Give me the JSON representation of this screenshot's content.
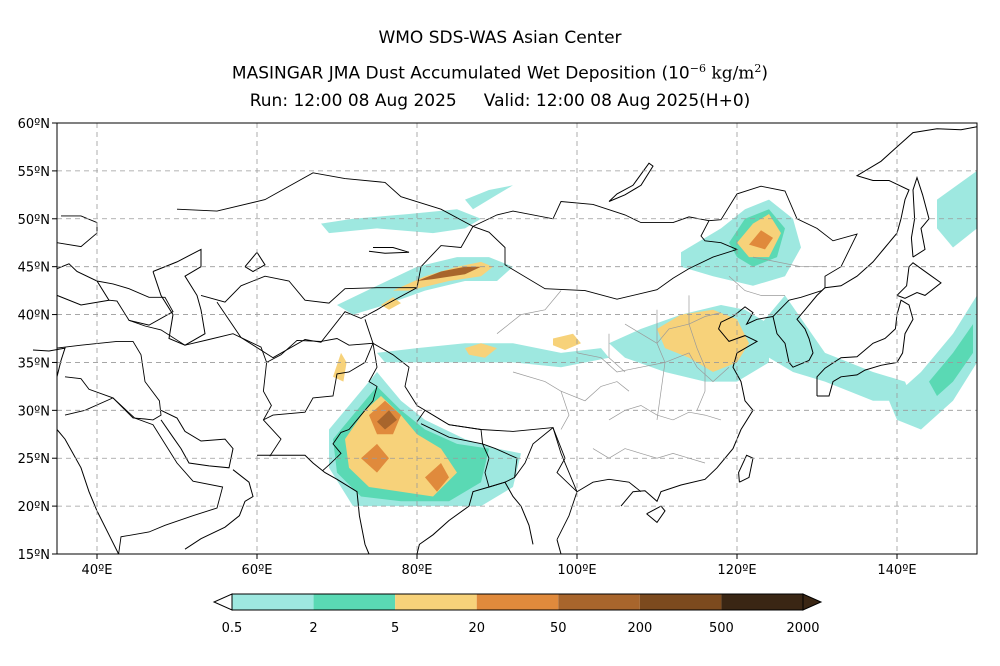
{
  "header": {
    "line1": "WMO SDS-WAS Asian Center",
    "line2_prefix": "MASINGAR JMA Dust Accumulated Wet Deposition (10",
    "line2_exp": "−6",
    "line2_unit": " kg/m",
    "line2_unit_exp": "2",
    "line2_close": ")",
    "run": "Run: 12:00 08 Aug 2025",
    "valid": "Valid: 12:00 08 Aug 2025(H+0)"
  },
  "map": {
    "lon_range": [
      35,
      150
    ],
    "lat_range": [
      15,
      60
    ],
    "lon_ticks": [
      {
        "value": 40,
        "label": "40ºE"
      },
      {
        "value": 60,
        "label": "60ºE"
      },
      {
        "value": 80,
        "label": "80ºE"
      },
      {
        "value": 100,
        "label": "100ºE"
      },
      {
        "value": 120,
        "label": "120ºE"
      },
      {
        "value": 140,
        "label": "140ºE"
      }
    ],
    "lat_ticks": [
      {
        "value": 60,
        "label": "60ºN"
      },
      {
        "value": 55,
        "label": "55ºN"
      },
      {
        "value": 50,
        "label": "50ºN"
      },
      {
        "value": 45,
        "label": "45ºN"
      },
      {
        "value": 40,
        "label": "40ºN"
      },
      {
        "value": 35,
        "label": "35ºN"
      },
      {
        "value": 30,
        "label": "30ºN"
      },
      {
        "value": 25,
        "label": "25ºN"
      },
      {
        "value": 20,
        "label": "20ºN"
      },
      {
        "value": 15,
        "label": "15ºN"
      }
    ],
    "grid": true
  },
  "colorbar": {
    "colors": [
      "#9ee8e0",
      "#5ad9b4",
      "#f7d27a",
      "#e08a3c",
      "#a8652c",
      "#7c4a1e",
      "#3a2614"
    ],
    "under_color": "#ffffff",
    "over_color": "#3a2614",
    "labels": [
      "0.5",
      "2",
      "5",
      "20",
      "50",
      "200",
      "500",
      "2000"
    ]
  },
  "deposition_regions": [
    {
      "name": "central-asia-band",
      "level": 0,
      "lonlat": [
        [
          69,
          48.5
        ],
        [
          75,
          49
        ],
        [
          82,
          48.5
        ],
        [
          86,
          49
        ],
        [
          88,
          50
        ],
        [
          85,
          51
        ],
        [
          79,
          50.5
        ],
        [
          72,
          50
        ],
        [
          68,
          49.5
        ]
      ]
    },
    {
      "name": "altai",
      "level": 0,
      "lonlat": [
        [
          87,
          51
        ],
        [
          90,
          52.5
        ],
        [
          92,
          53.5
        ],
        [
          89,
          53
        ],
        [
          86,
          52
        ]
      ]
    },
    {
      "name": "tianshan-outer",
      "level": 0,
      "lonlat": [
        [
          70,
          41
        ],
        [
          75,
          43
        ],
        [
          80,
          45
        ],
        [
          85,
          46
        ],
        [
          89,
          46
        ],
        [
          92,
          45
        ],
        [
          90,
          43.5
        ],
        [
          86,
          43.5
        ],
        [
          81,
          42.5
        ],
        [
          76,
          41
        ],
        [
          72,
          40
        ]
      ]
    },
    {
      "name": "tianshan-mid",
      "level": 2,
      "lonlat": [
        [
          77,
          42.5
        ],
        [
          81,
          44
        ],
        [
          85,
          45
        ],
        [
          88,
          45.5
        ],
        [
          89.5,
          45
        ],
        [
          88,
          44
        ],
        [
          84,
          43.5
        ],
        [
          79,
          42.5
        ]
      ]
    },
    {
      "name": "tianshan-core",
      "level": 4,
      "lonlat": [
        [
          80,
          43.5
        ],
        [
          83,
          44.5
        ],
        [
          86,
          45
        ],
        [
          88,
          45
        ],
        [
          86,
          44.2
        ],
        [
          82,
          43.7
        ]
      ]
    },
    {
      "name": "kyrgyz-spot",
      "level": 2,
      "lonlat": [
        [
          75.5,
          41
        ],
        [
          77,
          41.8
        ],
        [
          78,
          41.2
        ],
        [
          76.5,
          40.5
        ]
      ]
    },
    {
      "name": "kunlun-band",
      "level": 0,
      "lonlat": [
        [
          75,
          36
        ],
        [
          80,
          36.5
        ],
        [
          86,
          37
        ],
        [
          92,
          37
        ],
        [
          98,
          36
        ],
        [
          103,
          36.5
        ],
        [
          104,
          35.5
        ],
        [
          98,
          34.5
        ],
        [
          92,
          35
        ],
        [
          86,
          35
        ],
        [
          80,
          35
        ],
        [
          76,
          35
        ]
      ]
    },
    {
      "name": "kunlun-yellow",
      "level": 2,
      "lonlat": [
        [
          86,
          36.5
        ],
        [
          88,
          37
        ],
        [
          90,
          36.5
        ],
        [
          88.5,
          35.5
        ],
        [
          86.5,
          35.8
        ]
      ]
    },
    {
      "name": "qinghai",
      "level": 2,
      "lonlat": [
        [
          97,
          37.5
        ],
        [
          99.5,
          38
        ],
        [
          100.5,
          37
        ],
        [
          98.5,
          36.3
        ],
        [
          97,
          36.8
        ]
      ]
    },
    {
      "name": "north-china-outer",
      "level": 0,
      "lonlat": [
        [
          104,
          37
        ],
        [
          108,
          38.5
        ],
        [
          113,
          40
        ],
        [
          118,
          41
        ],
        [
          121,
          40.5
        ],
        [
          124,
          39
        ],
        [
          124,
          35
        ],
        [
          120,
          33
        ],
        [
          116,
          33
        ],
        [
          111,
          34
        ],
        [
          106,
          35.5
        ]
      ]
    },
    {
      "name": "north-china-yellow",
      "level": 2,
      "lonlat": [
        [
          110,
          38.5
        ],
        [
          113,
          40
        ],
        [
          117,
          40.5
        ],
        [
          120,
          39.5
        ],
        [
          121.5,
          37
        ],
        [
          120,
          35
        ],
        [
          117,
          34
        ],
        [
          114,
          35.5
        ],
        [
          111,
          36.5
        ]
      ]
    },
    {
      "name": "northeast-outer",
      "level": 0,
      "lonlat": [
        [
          113,
          46.5
        ],
        [
          118,
          49
        ],
        [
          121,
          51
        ],
        [
          124,
          52
        ],
        [
          127,
          50
        ],
        [
          128,
          47
        ],
        [
          126,
          44
        ],
        [
          122,
          43
        ],
        [
          117,
          44
        ],
        [
          113,
          45
        ]
      ]
    },
    {
      "name": "northeast-green",
      "level": 1,
      "lonlat": [
        [
          119,
          47.5
        ],
        [
          121,
          50
        ],
        [
          124,
          51
        ],
        [
          126,
          49
        ],
        [
          125,
          46
        ],
        [
          122,
          45
        ],
        [
          120,
          46
        ]
      ]
    },
    {
      "name": "northeast-yellow",
      "level": 2,
      "lonlat": [
        [
          120,
          47.5
        ],
        [
          122,
          49.5
        ],
        [
          124,
          50.5
        ],
        [
          125.5,
          48.5
        ],
        [
          124,
          46
        ],
        [
          121.5,
          46
        ]
      ]
    },
    {
      "name": "northeast-brown",
      "level": 3,
      "lonlat": [
        [
          121.5,
          47.3
        ],
        [
          123,
          48.8
        ],
        [
          124.5,
          48
        ],
        [
          123.5,
          46.8
        ]
      ]
    },
    {
      "name": "korea-japan-band",
      "level": 0,
      "lonlat": [
        [
          122,
          38
        ],
        [
          126,
          42
        ],
        [
          131,
          36
        ],
        [
          137,
          34
        ],
        [
          141,
          33
        ],
        [
          142,
          31
        ],
        [
          137,
          31
        ],
        [
          131,
          33
        ],
        [
          127,
          34
        ],
        [
          123,
          36
        ]
      ]
    },
    {
      "name": "pacific-band",
      "level": 0,
      "lonlat": [
        [
          139,
          31
        ],
        [
          143,
          34
        ],
        [
          147,
          38
        ],
        [
          150,
          42
        ],
        [
          150,
          35
        ],
        [
          147,
          31
        ],
        [
          143,
          28
        ],
        [
          140,
          29
        ]
      ]
    },
    {
      "name": "pacific-green",
      "level": 1,
      "lonlat": [
        [
          144,
          33
        ],
        [
          147,
          36
        ],
        [
          149.5,
          39
        ],
        [
          149.5,
          36
        ],
        [
          147,
          33
        ],
        [
          145,
          31.5
        ]
      ]
    },
    {
      "name": "east-asia-north",
      "level": 0,
      "lonlat": [
        [
          145,
          52
        ],
        [
          150,
          55
        ],
        [
          150,
          49
        ],
        [
          147,
          47
        ],
        [
          145,
          49
        ]
      ]
    },
    {
      "name": "pakistan-spot",
      "level": 2,
      "lonlat": [
        [
          69.5,
          33.5
        ],
        [
          70.5,
          36
        ],
        [
          71.2,
          35
        ],
        [
          70.8,
          33
        ]
      ]
    },
    {
      "name": "india-outer",
      "level": 0,
      "lonlat": [
        [
          69,
          28
        ],
        [
          72,
          31
        ],
        [
          75,
          34
        ],
        [
          78,
          31
        ],
        [
          81,
          29
        ],
        [
          86,
          27
        ],
        [
          90,
          26
        ],
        [
          93,
          25.5
        ],
        [
          92,
          22
        ],
        [
          88,
          20
        ],
        [
          80,
          20
        ],
        [
          72,
          20
        ],
        [
          69,
          24
        ]
      ]
    },
    {
      "name": "india-green",
      "level": 1,
      "lonlat": [
        [
          69.5,
          27
        ],
        [
          72.5,
          30
        ],
        [
          75,
          32.5
        ],
        [
          78,
          30
        ],
        [
          81,
          28
        ],
        [
          85,
          26.5
        ],
        [
          89,
          26
        ],
        [
          88,
          22.5
        ],
        [
          84,
          20.5
        ],
        [
          78,
          20.5
        ],
        [
          73,
          21
        ],
        [
          70,
          23.5
        ]
      ]
    },
    {
      "name": "india-yellow",
      "level": 2,
      "lonlat": [
        [
          71,
          27
        ],
        [
          73.5,
          30
        ],
        [
          75.5,
          31.5
        ],
        [
          78,
          29.5
        ],
        [
          80,
          27.5
        ],
        [
          83,
          26
        ],
        [
          85,
          23.5
        ],
        [
          82,
          21
        ],
        [
          78,
          21.5
        ],
        [
          74,
          22
        ],
        [
          71.5,
          24
        ]
      ]
    },
    {
      "name": "india-brown-north",
      "level": 3,
      "lonlat": [
        [
          74,
          29.5
        ],
        [
          76,
          31
        ],
        [
          78,
          29.5
        ],
        [
          77,
          27.5
        ],
        [
          75,
          27.5
        ]
      ]
    },
    {
      "name": "india-brown-mid",
      "level": 3,
      "lonlat": [
        [
          73,
          25
        ],
        [
          75,
          26.5
        ],
        [
          76.5,
          25
        ],
        [
          75,
          23.5
        ]
      ]
    },
    {
      "name": "india-brown-east",
      "level": 3,
      "lonlat": [
        [
          81,
          23
        ],
        [
          83,
          24.5
        ],
        [
          84,
          23
        ],
        [
          82.5,
          21.5
        ]
      ]
    },
    {
      "name": "india-dark",
      "level": 4,
      "lonlat": [
        [
          75,
          28.8
        ],
        [
          76.5,
          30
        ],
        [
          77.5,
          29
        ],
        [
          76,
          28
        ]
      ]
    }
  ]
}
